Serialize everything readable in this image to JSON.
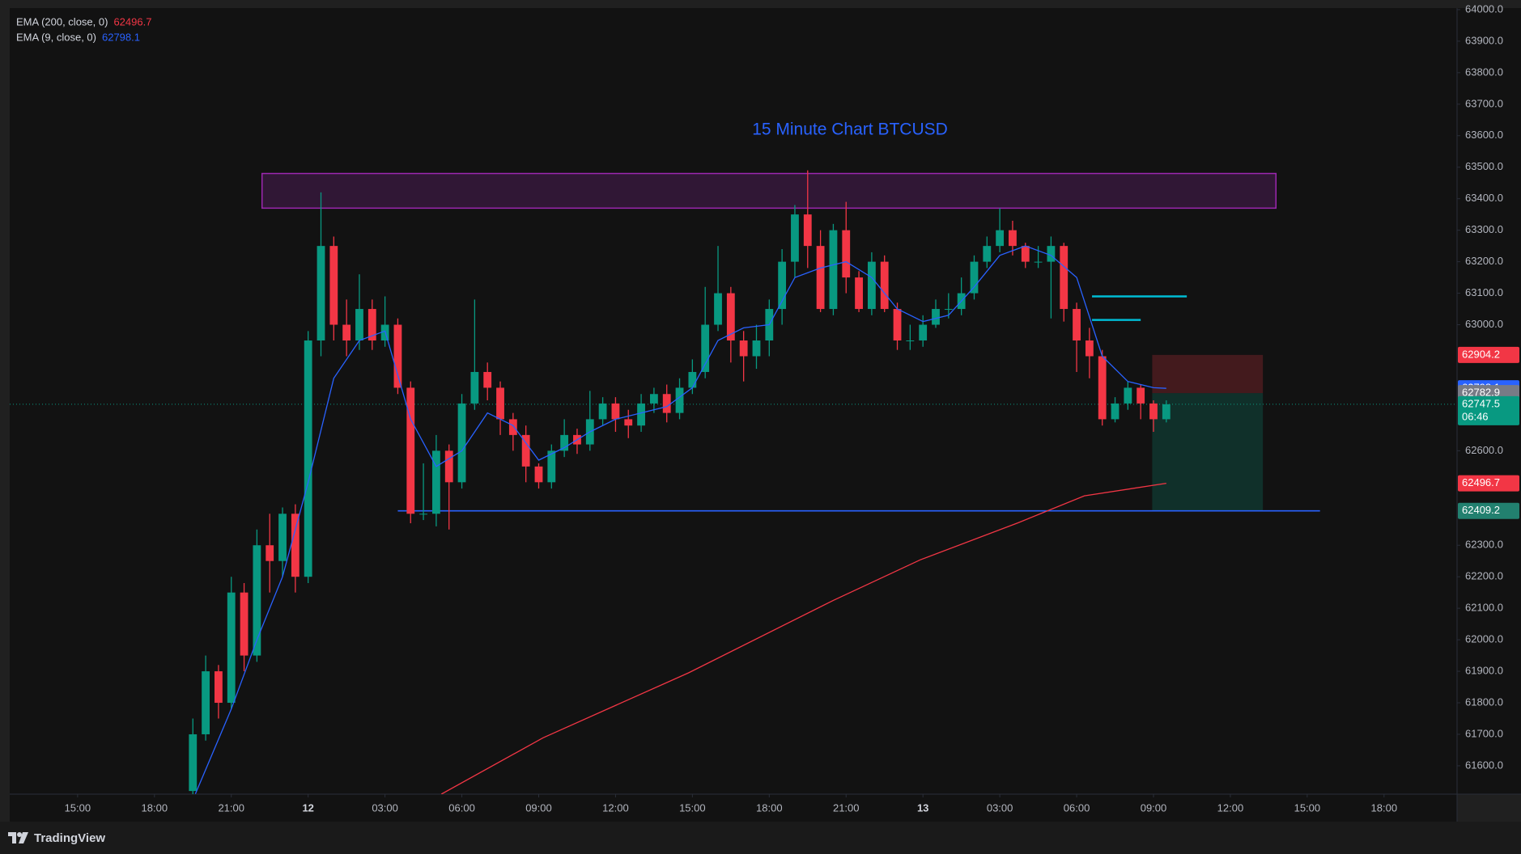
{
  "brand": "TradingView",
  "chart_data": {
    "type": "candlestick",
    "title": "15 Minute  Chart BTCUSD",
    "up_color": "#089981",
    "down_color": "#f23645",
    "x": [
      19.5,
      20,
      20.5,
      21,
      21.5,
      22,
      22.5,
      23,
      23.5,
      24,
      24.5,
      25,
      25.5,
      26,
      26.5,
      27,
      27.5,
      28,
      28.5,
      29,
      29.5,
      30,
      30.5,
      31,
      31.5,
      32,
      32.5,
      33,
      33.5,
      34,
      34.5,
      35,
      35.5,
      36,
      36.5,
      37,
      37.5,
      38,
      38.5,
      39,
      39.5,
      40,
      40.5,
      41,
      41.5,
      42,
      42.5,
      43,
      43.5,
      44,
      44.5,
      45,
      45.5,
      46,
      46.5,
      47,
      47.5,
      48,
      48.5,
      49,
      49.5,
      50,
      50.5,
      51,
      51.5,
      52,
      52.5,
      53,
      53.5,
      54,
      54.5,
      55,
      55.5,
      56,
      56.5,
      57,
      57.5
    ],
    "open": [
      61520,
      61700,
      61900,
      61800,
      62150,
      61950,
      62300,
      62250,
      62400,
      62200,
      62950,
      63250,
      63000,
      62950,
      63050,
      62950,
      63000,
      62800,
      62400,
      62400,
      62600,
      62500,
      62750,
      62850,
      62800,
      62700,
      62650,
      62550,
      62500,
      62600,
      62650,
      62620,
      62700,
      62750,
      62700,
      62680,
      62750,
      62780,
      62720,
      62800,
      62850,
      63000,
      63100,
      62950,
      62900,
      62950,
      63050,
      63200,
      63350,
      63250,
      63050,
      63300,
      63150,
      63050,
      63200,
      63050,
      62950,
      62950,
      63000,
      63050,
      63050,
      63100,
      63200,
      63250,
      63300,
      63250,
      63200,
      63200,
      63250,
      63050,
      62950,
      62900,
      62700,
      62750,
      62800,
      62750,
      62700
    ],
    "high": [
      61750,
      61950,
      61920,
      62200,
      62180,
      62350,
      62400,
      62420,
      62430,
      62980,
      63420,
      63280,
      63080,
      63160,
      63080,
      63090,
      63020,
      62820,
      62560,
      62650,
      62620,
      62780,
      63080,
      62880,
      62820,
      62720,
      62680,
      62560,
      62620,
      62700,
      62670,
      62790,
      62770,
      62770,
      62730,
      62780,
      62800,
      62810,
      62830,
      62890,
      63120,
      63250,
      63120,
      62980,
      63000,
      63080,
      63240,
      63380,
      63490,
      63300,
      63320,
      63390,
      63170,
      63230,
      63220,
      63070,
      63000,
      63030,
      63080,
      63100,
      63150,
      63220,
      63280,
      63370,
      63330,
      63260,
      63250,
      63280,
      63260,
      63070,
      62990,
      62920,
      62770,
      62820,
      62810,
      62760,
      62760
    ],
    "low": [
      61510,
      61680,
      61750,
      61780,
      61900,
      61930,
      62150,
      62200,
      62150,
      62180,
      62900,
      62950,
      62900,
      62920,
      62920,
      62930,
      62780,
      62370,
      62380,
      62360,
      62350,
      62480,
      62730,
      62760,
      62650,
      62600,
      62500,
      62480,
      62480,
      62580,
      62590,
      62600,
      62680,
      62660,
      62640,
      62660,
      62720,
      62690,
      62700,
      62780,
      62830,
      62980,
      62880,
      62820,
      62860,
      62900,
      63000,
      63150,
      63180,
      63040,
      63030,
      63100,
      63040,
      63030,
      63040,
      62920,
      62920,
      62930,
      62990,
      63020,
      63030,
      63080,
      63180,
      63230,
      63220,
      63180,
      63180,
      63020,
      63010,
      62850,
      62830,
      62680,
      62690,
      62730,
      62700,
      62660,
      62690
    ],
    "close": [
      61700,
      61900,
      61800,
      62150,
      61950,
      62300,
      62250,
      62400,
      62200,
      62950,
      63250,
      63000,
      62950,
      63050,
      62950,
      63000,
      62800,
      62400,
      62400,
      62600,
      62500,
      62750,
      62850,
      62800,
      62700,
      62650,
      62550,
      62500,
      62600,
      62650,
      62620,
      62700,
      62750,
      62700,
      62680,
      62750,
      62780,
      62720,
      62800,
      62850,
      63000,
      63100,
      62950,
      62900,
      62950,
      63050,
      63200,
      63350,
      63250,
      63050,
      63300,
      63150,
      63050,
      63200,
      63050,
      62950,
      62950,
      63000,
      63050,
      63050,
      63100,
      63200,
      63250,
      63300,
      63250,
      63200,
      63200,
      63250,
      63050,
      62950,
      62900,
      62700,
      62750,
      62800,
      62750,
      62700,
      62747.5
    ],
    "countdown": "06:46",
    "series": [
      {
        "name": "EMA (200, close, 0)",
        "color": "#f23645",
        "x": [
          29.2,
          33.17,
          38.85,
          44.5,
          47.9,
          51.7,
          54.3,
          57.5
        ],
        "values": [
          61510,
          61689,
          61895,
          62125,
          62254,
          62371,
          62457,
          62496.7
        ]
      },
      {
        "name": "EMA (9, close, 0)",
        "color": "#2962ff",
        "x": [
          19.6,
          21,
          22,
          23,
          24,
          25,
          26,
          27,
          28,
          29,
          30,
          31,
          32,
          33,
          34,
          35,
          36,
          37,
          38,
          39,
          40,
          41,
          42,
          43,
          44,
          45,
          46,
          47,
          48,
          49,
          50,
          51,
          52,
          53,
          54,
          55,
          56,
          57,
          57.5
        ],
        "values": [
          61511,
          61780,
          62000,
          62200,
          62500,
          62830,
          62950,
          62980,
          62700,
          62550,
          62600,
          62720,
          62680,
          62570,
          62610,
          62660,
          62700,
          62720,
          62740,
          62800,
          62950,
          62990,
          63000,
          63150,
          63180,
          63200,
          63150,
          63050,
          63010,
          63030,
          63120,
          63220,
          63250,
          63220,
          63150,
          62900,
          62820,
          62800,
          62798.1
        ]
      }
    ],
    "zone": {
      "x": [
        22.2,
        61.78
      ],
      "y": [
        63370,
        63480
      ],
      "color": "#9c27b0"
    },
    "support_line": {
      "value": 62409.2,
      "x": [
        27.5,
        63.5
      ],
      "color": "#2962ff"
    },
    "levels": [
      {
        "value": 63090,
        "x": [
          54.6,
          58.3
        ],
        "color": "#00bcd4"
      },
      {
        "value": 63015,
        "x": [
          54.6,
          56.5
        ],
        "color": "#00bcd4"
      }
    ],
    "position": {
      "entry": 62782.9,
      "stop": 62904.2,
      "target": 62409.2,
      "x": [
        56.95,
        61.27
      ]
    },
    "xlim": [
      12.35,
      68.85
    ],
    "ylim": [
      61510,
      64005
    ],
    "xticks": [
      {
        "value": 15,
        "label": "15:00"
      },
      {
        "value": 18,
        "label": "18:00"
      },
      {
        "value": 21,
        "label": "21:00"
      },
      {
        "value": 24,
        "label": "12"
      },
      {
        "value": 27,
        "label": "03:00"
      },
      {
        "value": 30,
        "label": "06:00"
      },
      {
        "value": 33,
        "label": "09:00"
      },
      {
        "value": 36,
        "label": "12:00"
      },
      {
        "value": 39,
        "label": "15:00"
      },
      {
        "value": 42,
        "label": "18:00"
      },
      {
        "value": 45,
        "label": "21:00"
      },
      {
        "value": 48,
        "label": "13"
      },
      {
        "value": 51,
        "label": "03:00"
      },
      {
        "value": 54,
        "label": "06:00"
      },
      {
        "value": 57,
        "label": "09:00"
      },
      {
        "value": 60,
        "label": "12:00"
      },
      {
        "value": 63,
        "label": "15:00"
      },
      {
        "value": 66,
        "label": "18:00"
      }
    ],
    "yticks": [
      {
        "value": 61600,
        "label": "61600.0"
      },
      {
        "value": 61700,
        "label": "61700.0"
      },
      {
        "value": 61800,
        "label": "61800.0"
      },
      {
        "value": 61900,
        "label": "61900.0"
      },
      {
        "value": 62000,
        "label": "62000.0"
      },
      {
        "value": 62100,
        "label": "62100.0"
      },
      {
        "value": 62200,
        "label": "62200.0"
      },
      {
        "value": 62300,
        "label": "62300.0"
      },
      {
        "value": 62600,
        "label": "62600.0"
      },
      {
        "value": 63000,
        "label": "63000.0"
      },
      {
        "value": 63100,
        "label": "63100.0"
      },
      {
        "value": 63200,
        "label": "63200.0"
      },
      {
        "value": 63300,
        "label": "63300.0"
      },
      {
        "value": 63400,
        "label": "63400.0"
      },
      {
        "value": 63500,
        "label": "63500.0"
      },
      {
        "value": 63600,
        "label": "63600.0"
      },
      {
        "value": 63700,
        "label": "63700.0"
      },
      {
        "value": 63800,
        "label": "63800.0"
      },
      {
        "value": 63900,
        "label": "63900.0"
      },
      {
        "value": 64000,
        "label": "64000.0"
      }
    ]
  }
}
